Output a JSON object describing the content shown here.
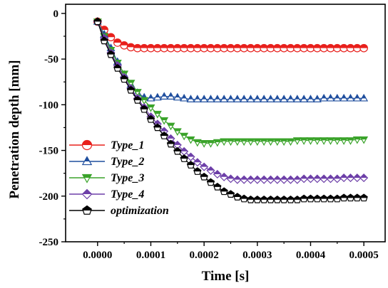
{
  "chart_data": {
    "type": "line",
    "title": "",
    "xlabel": "Time [s]",
    "ylabel": "Penetration depth [mm]",
    "xlim": [
      -6e-05,
      0.00054
    ],
    "ylim": [
      -250,
      10
    ],
    "xticks": [
      0.0,
      0.0001,
      0.0002,
      0.0003,
      0.0004,
      0.0005
    ],
    "xtick_labels": [
      "0.0000",
      "0.0001",
      "0.0002",
      "0.0003",
      "0.0004",
      "0.0005"
    ],
    "yticks": [
      0,
      -50,
      -100,
      -150,
      -200,
      -250
    ],
    "ytick_labels": [
      "0",
      "-50",
      "-100",
      "-150",
      "-200",
      "-250"
    ],
    "grid": false,
    "legend_position": "lower-left",
    "x": [
      0.0,
      1.25e-05,
      2.5e-05,
      3.75e-05,
      5e-05,
      6.25e-05,
      7.5e-05,
      8.75e-05,
      0.0001,
      0.0001125,
      0.000125,
      0.0001375,
      0.00015,
      0.0001625,
      0.000175,
      0.0001875,
      0.0002,
      0.0002125,
      0.000225,
      0.0002375,
      0.00025,
      0.0002625,
      0.000275,
      0.0002875,
      0.0003,
      0.0003125,
      0.000325,
      0.0003375,
      0.00035,
      0.0003625,
      0.000375,
      0.0003875,
      0.0004,
      0.0004125,
      0.000425,
      0.0004375,
      0.00045,
      0.0004625,
      0.000475,
      0.0004875,
      0.0005
    ],
    "series": [
      {
        "name": "Type_1",
        "color": "#e8201c",
        "marker": "circle-half",
        "values": [
          -9,
          -18,
          -26,
          -32,
          -35,
          -37,
          -38,
          -38,
          -38,
          -38,
          -38,
          -38,
          -38,
          -38,
          -38,
          -38,
          -38,
          -38,
          -38,
          -38,
          -38,
          -38,
          -38,
          -38,
          -38,
          -38,
          -38,
          -38,
          -38,
          -38,
          -38,
          -38,
          -38,
          -38,
          -38,
          -38,
          -38,
          -38,
          -38,
          -38,
          -38
        ]
      },
      {
        "name": "Type_2",
        "color": "#1f4e9e",
        "marker": "triangle-up-half",
        "values": [
          -9,
          -23,
          -38,
          -53,
          -67,
          -78,
          -87,
          -92,
          -93,
          -92,
          -91,
          -91,
          -92,
          -93,
          -94,
          -94,
          -94,
          -94,
          -94,
          -94,
          -94,
          -94,
          -94,
          -94,
          -94,
          -94,
          -94,
          -94,
          -94,
          -94,
          -94,
          -94,
          -94,
          -94,
          -93,
          -93,
          -93,
          -93,
          -93,
          -93,
          -93
        ]
      },
      {
        "name": "Type_3",
        "color": "#3aa32a",
        "marker": "triangle-down-half",
        "values": [
          -9,
          -25,
          -40,
          -54,
          -66,
          -76,
          -86,
          -95,
          -103,
          -110,
          -117,
          -123,
          -129,
          -134,
          -138,
          -141,
          -142,
          -142,
          -141,
          -140,
          -140,
          -140,
          -140,
          -140,
          -140,
          -140,
          -140,
          -140,
          -140,
          -140,
          -139,
          -139,
          -139,
          -139,
          -139,
          -139,
          -139,
          -139,
          -139,
          -138,
          -138
        ]
      },
      {
        "name": "Type_4",
        "color": "#6d3fa8",
        "marker": "diamond-half",
        "values": [
          -9,
          -27,
          -43,
          -57,
          -70,
          -82,
          -93,
          -103,
          -113,
          -121,
          -129,
          -137,
          -144,
          -151,
          -157,
          -163,
          -168,
          -172,
          -176,
          -179,
          -181,
          -182,
          -182,
          -182,
          -182,
          -182,
          -182,
          -182,
          -182,
          -182,
          -182,
          -181,
          -181,
          -181,
          -181,
          -181,
          -181,
          -180,
          -180,
          -180,
          -180
        ]
      },
      {
        "name": "optimization",
        "color": "#000000",
        "marker": "pentagon-half",
        "values": [
          -9,
          -30,
          -45,
          -60,
          -72,
          -84,
          -95,
          -105,
          -116,
          -125,
          -134,
          -143,
          -151,
          -159,
          -166,
          -173,
          -179,
          -185,
          -190,
          -195,
          -198,
          -201,
          -203,
          -204,
          -204,
          -204,
          -204,
          -204,
          -204,
          -204,
          -204,
          -203,
          -203,
          -203,
          -203,
          -203,
          -203,
          -202,
          -202,
          -202,
          -202
        ]
      }
    ]
  }
}
